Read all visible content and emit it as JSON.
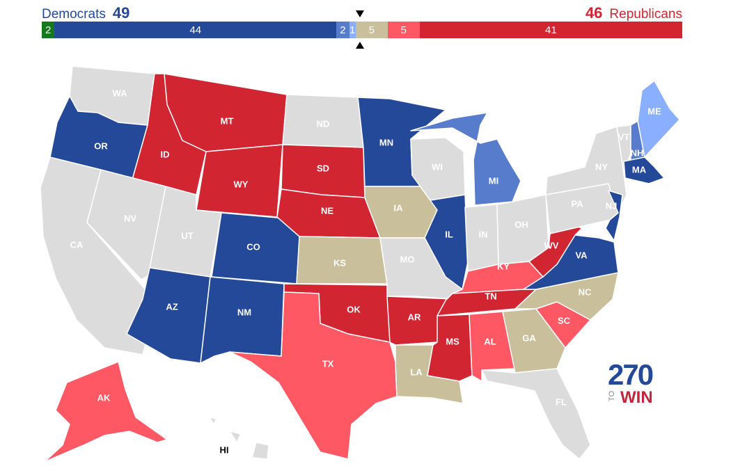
{
  "header": {
    "dem_label": "Democrats",
    "dem_total": "49",
    "rep_total": "46",
    "rep_label": "Republicans"
  },
  "bar_segments": [
    {
      "label": "2",
      "value": 2,
      "color": "#14781f"
    },
    {
      "label": "44",
      "value": 44,
      "color": "#244999"
    },
    {
      "label": "2",
      "value": 2,
      "color": "#577ccc"
    },
    {
      "label": "1",
      "value": 1,
      "color": "#8aafff"
    },
    {
      "label": "5",
      "value": 5,
      "color": "#c9c09b"
    },
    {
      "label": "5",
      "value": 5,
      "color": "#ff5865"
    },
    {
      "label": "41",
      "value": 41,
      "color": "#d22532"
    }
  ],
  "colors": {
    "safe_dem": "#244999",
    "likely_dem": "#577ccc",
    "lean_dem": "#8aafff",
    "tossup": "#c9c09b",
    "lean_rep": "#ff5865",
    "safe_rep": "#d22532",
    "no_race": "#dcdcdc",
    "independent": "#14781f"
  },
  "states": [
    {
      "abbr": "WA",
      "rating": "none"
    },
    {
      "abbr": "OR",
      "rating": "safe_dem"
    },
    {
      "abbr": "CA",
      "rating": "none"
    },
    {
      "abbr": "ID",
      "rating": "safe_rep"
    },
    {
      "abbr": "NV",
      "rating": "none"
    },
    {
      "abbr": "MT",
      "rating": "safe_rep"
    },
    {
      "abbr": "WY",
      "rating": "safe_rep"
    },
    {
      "abbr": "UT",
      "rating": "none"
    },
    {
      "abbr": "AZ",
      "rating": "safe_dem"
    },
    {
      "abbr": "CO",
      "rating": "safe_dem"
    },
    {
      "abbr": "NM",
      "rating": "safe_dem"
    },
    {
      "abbr": "ND",
      "rating": "none"
    },
    {
      "abbr": "SD",
      "rating": "safe_rep"
    },
    {
      "abbr": "NE",
      "rating": "safe_rep"
    },
    {
      "abbr": "KS",
      "rating": "tossup"
    },
    {
      "abbr": "OK",
      "rating": "safe_rep"
    },
    {
      "abbr": "TX",
      "rating": "lean_rep"
    },
    {
      "abbr": "MN",
      "rating": "safe_dem"
    },
    {
      "abbr": "IA",
      "rating": "tossup"
    },
    {
      "abbr": "MO",
      "rating": "none"
    },
    {
      "abbr": "AR",
      "rating": "safe_rep"
    },
    {
      "abbr": "LA",
      "rating": "tossup"
    },
    {
      "abbr": "WI",
      "rating": "none"
    },
    {
      "abbr": "IL",
      "rating": "safe_dem"
    },
    {
      "abbr": "MI",
      "rating": "likely_dem"
    },
    {
      "abbr": "IN",
      "rating": "none"
    },
    {
      "abbr": "OH",
      "rating": "none"
    },
    {
      "abbr": "KY",
      "rating": "lean_rep"
    },
    {
      "abbr": "TN",
      "rating": "safe_rep"
    },
    {
      "abbr": "MS",
      "rating": "safe_rep"
    },
    {
      "abbr": "AL",
      "rating": "lean_rep"
    },
    {
      "abbr": "GA",
      "rating": "tossup"
    },
    {
      "abbr": "FL",
      "rating": "none"
    },
    {
      "abbr": "SC",
      "rating": "lean_rep"
    },
    {
      "abbr": "NC",
      "rating": "tossup"
    },
    {
      "abbr": "VA",
      "rating": "safe_dem"
    },
    {
      "abbr": "WV",
      "rating": "safe_rep"
    },
    {
      "abbr": "PA",
      "rating": "none"
    },
    {
      "abbr": "NY",
      "rating": "none"
    },
    {
      "abbr": "NJ",
      "rating": "safe_dem"
    },
    {
      "abbr": "VT",
      "rating": "none"
    },
    {
      "abbr": "NH",
      "rating": "likely_dem"
    },
    {
      "abbr": "ME",
      "rating": "lean_dem"
    },
    {
      "abbr": "MA",
      "rating": "safe_dem"
    },
    {
      "abbr": "AK",
      "rating": "lean_rep"
    },
    {
      "abbr": "HI",
      "rating": "none"
    }
  ],
  "logo": {
    "number": "270",
    "to": "TO",
    "win": "WIN"
  }
}
